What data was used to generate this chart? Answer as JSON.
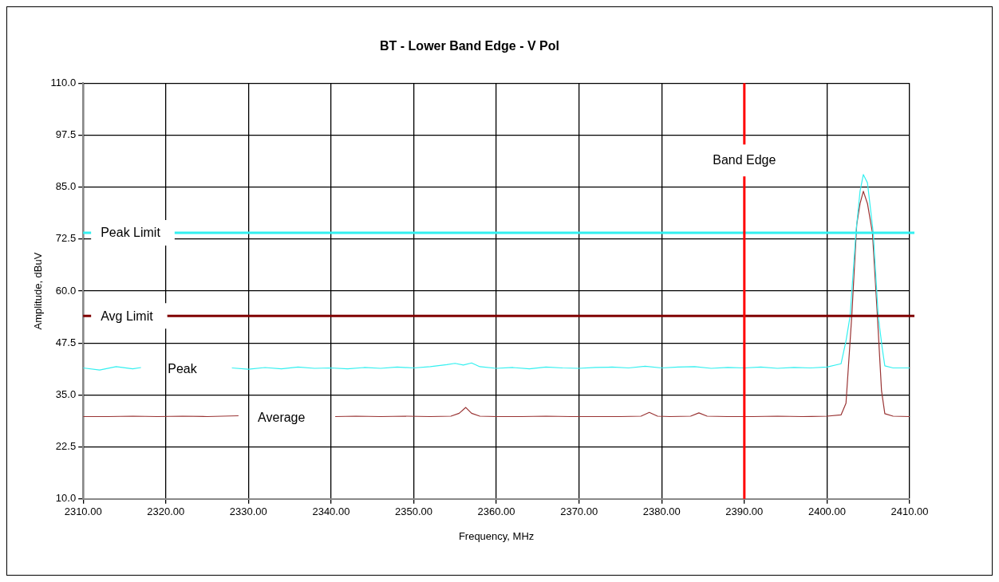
{
  "chart_data": {
    "type": "line",
    "title": "BT - Lower Band Edge - V Pol",
    "xlabel": "Frequency, MHz",
    "ylabel": "Amplitude, dBuV",
    "xlim": [
      2310,
      2410
    ],
    "xticks": [
      {
        "value": 2310,
        "label": "2310.00"
      },
      {
        "value": 2320,
        "label": "2320.00"
      },
      {
        "value": 2330,
        "label": "2330.00"
      },
      {
        "value": 2340,
        "label": "2340.00"
      },
      {
        "value": 2350,
        "label": "2350.00"
      },
      {
        "value": 2360,
        "label": "2360.00"
      },
      {
        "value": 2370,
        "label": "2370.00"
      },
      {
        "value": 2380,
        "label": "2380.00"
      },
      {
        "value": 2390,
        "label": "2390.00"
      },
      {
        "value": 2400,
        "label": "2400.00"
      },
      {
        "value": 2410,
        "label": "2410.00"
      }
    ],
    "ylim": [
      10,
      110
    ],
    "yticks": [
      {
        "value": 10,
        "label": "10.0"
      },
      {
        "value": 22.5,
        "label": "22.5"
      },
      {
        "value": 35,
        "label": "35.0"
      },
      {
        "value": 47.5,
        "label": "47.5"
      },
      {
        "value": 60,
        "label": "60.0"
      },
      {
        "value": 72.5,
        "label": "72.5"
      },
      {
        "value": 85,
        "label": "85.0"
      },
      {
        "value": 97.5,
        "label": "97.5"
      },
      {
        "value": 110,
        "label": "110.0"
      }
    ],
    "grid": true,
    "legend": false,
    "marker": "none",
    "line_style": "solid",
    "series": [
      {
        "name": "Peak",
        "color": "#33f0f0",
        "x": [
          2310,
          2312,
          2314,
          2316,
          2317,
          2322,
          2328,
          2330,
          2332,
          2334,
          2336,
          2338,
          2340,
          2342,
          2344,
          2346,
          2348,
          2350,
          2352,
          2354,
          2355,
          2356,
          2357,
          2358,
          2360,
          2362,
          2364,
          2366,
          2368,
          2370,
          2372,
          2374,
          2376,
          2378,
          2380,
          2382,
          2384,
          2386,
          2388,
          2390,
          2392,
          2394,
          2396,
          2398,
          2400,
          2401.7,
          2402.3,
          2402.8,
          2403.5,
          2404,
          2404.4,
          2404.9,
          2405.6,
          2406.2,
          2406.7,
          2407,
          2408,
          2410
        ],
        "values": [
          41.5,
          41.0,
          41.8,
          41.3,
          41.6,
          null,
          41.5,
          41.2,
          41.6,
          41.3,
          41.7,
          41.4,
          41.5,
          41.3,
          41.6,
          41.4,
          41.7,
          41.5,
          41.8,
          42.3,
          42.6,
          42.2,
          42.7,
          41.8,
          41.4,
          41.6,
          41.3,
          41.7,
          41.5,
          41.4,
          41.6,
          41.7,
          41.5,
          41.9,
          41.5,
          41.7,
          41.8,
          41.4,
          41.6,
          41.5,
          41.7,
          41.4,
          41.6,
          41.5,
          41.7,
          42.5,
          48,
          54,
          74,
          84,
          88,
          86,
          74,
          54,
          46,
          42,
          41.5,
          41.5
        ]
      },
      {
        "name": "Average",
        "color": "#993333",
        "x": [
          2310,
          2313,
          2316,
          2319,
          2322,
          2325,
          2328.8,
          2334,
          2340.5,
          2343,
          2346,
          2349,
          2352,
          2354.5,
          2355.5,
          2356.3,
          2357,
          2358,
          2360,
          2363,
          2366,
          2369,
          2372,
          2375,
          2377.5,
          2378.5,
          2379.5,
          2381,
          2383.5,
          2384.5,
          2385.5,
          2388,
          2391,
          2394,
          2397,
          2400,
          2401.7,
          2402.3,
          2403,
          2403.6,
          2404,
          2404.4,
          2404.9,
          2405.5,
          2406.1,
          2406.6,
          2407,
          2408,
          2410
        ],
        "values": [
          29.8,
          29.8,
          29.9,
          29.8,
          29.9,
          29.8,
          30.0,
          null,
          29.8,
          29.9,
          29.8,
          29.9,
          29.8,
          29.9,
          30.6,
          32.0,
          30.6,
          29.9,
          29.8,
          29.8,
          29.9,
          29.8,
          29.8,
          29.8,
          29.9,
          30.8,
          29.9,
          29.8,
          29.9,
          30.7,
          29.9,
          29.8,
          29.8,
          29.9,
          29.8,
          29.9,
          30.2,
          33,
          54,
          76,
          81,
          84,
          81,
          74,
          54,
          36,
          30.5,
          29.9,
          29.8
        ]
      }
    ],
    "ref_lines": [
      {
        "axis": "y",
        "value": 74,
        "label": "Peak Limit",
        "color": "#33f0f0"
      },
      {
        "axis": "y",
        "value": 54,
        "label": "Avg Limit",
        "color": "#800000"
      },
      {
        "axis": "x",
        "value": 2390,
        "label": "Band Edge",
        "color": "#ff0000"
      }
    ]
  }
}
